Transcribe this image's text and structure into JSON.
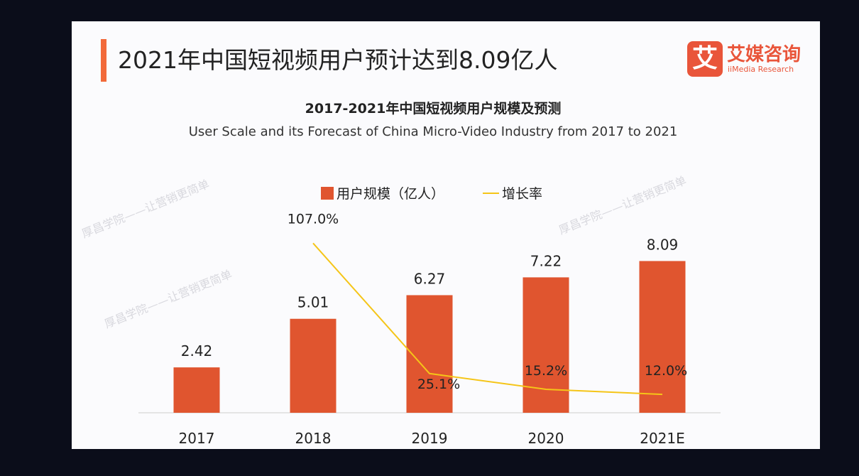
{
  "header": {
    "title": "2021年中国短视频用户预计达到8.09亿人"
  },
  "logo": {
    "mark": "艾",
    "name_cn": "艾媒咨询",
    "name_en": "iiMedia Research"
  },
  "watermark": "厚昌学院——让营销更简单",
  "colors": {
    "bar": "#e0552f",
    "line": "#f5c518",
    "accent": "#f26a3a",
    "background": "#0b0d1a"
  },
  "chart_data": {
    "type": "bar+line",
    "title": "2017-2021年中国短视频用户规模及预测",
    "subtitle": "User Scale and its Forecast of China Micro-Video Industry from 2017 to 2021",
    "categories": [
      "2017",
      "2018",
      "2019",
      "2020",
      "2021E"
    ],
    "legend_position": "top-center",
    "grid": false,
    "series": [
      {
        "name": "用户规模（亿人）",
        "type": "bar",
        "values": [
          2.42,
          5.01,
          6.27,
          7.22,
          8.09
        ],
        "labels": [
          "2.42",
          "5.01",
          "6.27",
          "7.22",
          "8.09"
        ]
      },
      {
        "name": "增长率",
        "type": "line",
        "values": [
          null,
          107.0,
          25.1,
          15.2,
          12.0
        ],
        "labels": [
          "",
          "107.0%",
          "25.1%",
          "15.2%",
          "12.0%"
        ]
      }
    ]
  }
}
